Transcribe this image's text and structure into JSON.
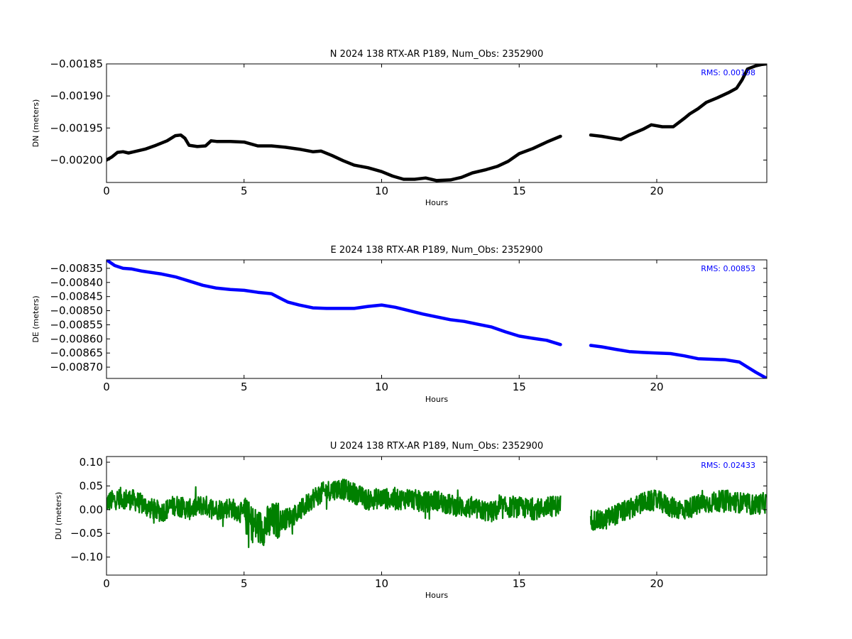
{
  "chart_data": [
    {
      "type": "line",
      "title": "N 2024 138 RTX-AR  P189, Num_Obs: 2352900",
      "xlabel": "Hours",
      "ylabel": "DN (meters)",
      "xlim": [
        0,
        24
      ],
      "ylim": [
        -0.002035,
        -0.00185
      ],
      "xticks": [
        0,
        5,
        10,
        15,
        20
      ],
      "yticks": [
        -0.00185,
        -0.0019,
        -0.00195,
        -0.002
      ],
      "ytick_labels": [
        "−0.00185",
        "−0.00190",
        "−0.00195",
        "−0.00200"
      ],
      "annotation": "RMS:  0.00198",
      "color": "#000000",
      "noise": 0,
      "series": [
        {
          "x": [
            0,
            0.2,
            0.4,
            0.6,
            0.8,
            1.0,
            1.4,
            1.8,
            2.2,
            2.5,
            2.7,
            2.85,
            3.0,
            3.3,
            3.6,
            3.8,
            4.0,
            4.5,
            5.0,
            5.5,
            6.0,
            6.5,
            7.0,
            7.5,
            7.8,
            8.2,
            8.6,
            9.0,
            9.5,
            10.0,
            10.4,
            10.8,
            11.2,
            11.6,
            12.0,
            12.5,
            12.9,
            13.3,
            13.8,
            14.2,
            14.6,
            15.0,
            15.5,
            16.0,
            16.5,
            null,
            17.6,
            18.0,
            18.4,
            18.7,
            19.0,
            19.5,
            19.8,
            20.2,
            20.6,
            21.0,
            21.2,
            21.5,
            21.8,
            22.2,
            22.6,
            22.9,
            23.1,
            23.3,
            23.6,
            23.8,
            24.0
          ],
          "y": [
            -0.002,
            -0.001995,
            -0.001988,
            -0.001987,
            -0.001989,
            -0.001987,
            -0.001983,
            -0.001977,
            -0.00197,
            -0.001962,
            -0.001961,
            -0.001966,
            -0.001977,
            -0.001979,
            -0.001978,
            -0.00197,
            -0.001971,
            -0.001971,
            -0.001972,
            -0.001978,
            -0.001978,
            -0.00198,
            -0.001983,
            -0.001987,
            -0.001986,
            -0.001993,
            -0.002001,
            -0.002008,
            -0.002012,
            -0.002018,
            -0.002025,
            -0.00203,
            -0.00203,
            -0.002028,
            -0.002032,
            -0.002031,
            -0.002027,
            -0.00202,
            -0.002015,
            -0.00201,
            -0.002002,
            -0.00199,
            -0.001982,
            -0.001972,
            -0.001963,
            null,
            -0.001961,
            -0.001963,
            -0.001966,
            -0.001968,
            -0.001961,
            -0.001952,
            -0.001945,
            -0.001948,
            -0.001948,
            -0.001935,
            -0.001928,
            -0.00192,
            -0.00191,
            -0.001903,
            -0.001895,
            -0.001888,
            -0.001875,
            -0.001858,
            -0.001853,
            -0.001851,
            -0.00185
          ]
        }
      ]
    },
    {
      "type": "line",
      "title": "E 2024 138 RTX-AR  P189, Num_Obs: 2352900",
      "xlabel": "Hours",
      "ylabel": "DE (meters)",
      "xlim": [
        0,
        24
      ],
      "ylim": [
        -0.00874,
        -0.00832
      ],
      "xticks": [
        0,
        5,
        10,
        15,
        20
      ],
      "yticks": [
        -0.00835,
        -0.0084,
        -0.00845,
        -0.0085,
        -0.00855,
        -0.0086,
        -0.00865,
        -0.0087
      ],
      "ytick_labels": [
        "−0.00835",
        "−0.00840",
        "−0.00845",
        "−0.00850",
        "−0.00855",
        "−0.00860",
        "−0.00865",
        "−0.00870"
      ],
      "annotation": "RMS:  0.00853",
      "color": "#0000ff",
      "noise": 0,
      "series": [
        {
          "x": [
            0,
            0.3,
            0.6,
            0.9,
            1.3,
            2.0,
            2.5,
            3.0,
            3.5,
            4.0,
            4.5,
            5.0,
            5.5,
            6.0,
            6.4,
            6.6,
            7.0,
            7.5,
            8.0,
            8.5,
            9.0,
            9.5,
            10.0,
            10.5,
            11.0,
            11.5,
            12.0,
            12.5,
            13.0,
            13.5,
            14.0,
            14.5,
            15.0,
            15.5,
            16.0,
            16.5,
            null,
            17.6,
            18.0,
            18.5,
            19.0,
            19.5,
            20.0,
            20.5,
            21.0,
            21.5,
            22.0,
            22.5,
            23.0,
            23.3,
            23.6,
            24.0
          ],
          "y": [
            -0.00832,
            -0.00834,
            -0.00835,
            -0.008352,
            -0.00836,
            -0.00837,
            -0.00838,
            -0.008395,
            -0.00841,
            -0.00842,
            -0.008425,
            -0.008428,
            -0.008435,
            -0.00844,
            -0.00846,
            -0.00847,
            -0.00848,
            -0.00849,
            -0.008492,
            -0.008492,
            -0.008492,
            -0.008485,
            -0.00848,
            -0.008488,
            -0.0085,
            -0.008512,
            -0.008522,
            -0.008532,
            -0.008538,
            -0.008548,
            -0.008558,
            -0.008575,
            -0.00859,
            -0.008598,
            -0.008605,
            -0.00862,
            null,
            -0.008623,
            -0.008628,
            -0.008637,
            -0.008645,
            -0.008648,
            -0.00865,
            -0.008652,
            -0.00866,
            -0.00867,
            -0.008672,
            -0.008674,
            -0.008682,
            -0.0087,
            -0.008718,
            -0.00874
          ]
        }
      ]
    },
    {
      "type": "line",
      "title": "U 2024 138 RTX-AR  P189, Num_Obs: 2352900",
      "xlabel": "Hours",
      "ylabel": "DU (meters)",
      "xlim": [
        0,
        24
      ],
      "ylim": [
        -0.138,
        0.112
      ],
      "xticks": [
        0,
        5,
        10,
        15,
        20
      ],
      "yticks": [
        0.1,
        0.05,
        0,
        -0.05,
        -0.1
      ],
      "ytick_labels": [
        "0.10",
        "0.05",
        "0.00",
        "−0.05",
        "−0.10"
      ],
      "annotation": "RMS:  0.02433",
      "color": "#008000",
      "noise": 0.022,
      "series": [
        {
          "x": [
            0,
            0.5,
            1.0,
            1.5,
            2.0,
            2.5,
            3.0,
            3.5,
            4.0,
            4.5,
            5.0,
            5.3,
            5.6,
            6.0,
            6.5,
            7.0,
            7.5,
            8.0,
            8.5,
            9.0,
            9.5,
            10.0,
            10.5,
            11.0,
            11.5,
            12.0,
            12.5,
            13.0,
            13.5,
            14.0,
            14.5,
            15.0,
            15.5,
            16.0,
            16.5,
            null,
            17.6,
            18.0,
            18.5,
            19.0,
            19.5,
            20.0,
            20.5,
            21.0,
            21.5,
            22.0,
            22.5,
            23.0,
            23.5,
            24.0
          ],
          "y": [
            0.015,
            0.025,
            0.02,
            0.005,
            -0.005,
            0.01,
            0.0,
            0.01,
            0.0,
            0.005,
            -0.01,
            -0.03,
            -0.04,
            -0.025,
            -0.02,
            -0.005,
            0.025,
            0.04,
            0.045,
            0.035,
            0.02,
            0.025,
            0.02,
            0.025,
            0.015,
            0.02,
            0.01,
            0.005,
            0.0,
            -0.005,
            0.005,
            0.005,
            0.0,
            0.005,
            0.01,
            null,
            -0.02,
            -0.025,
            -0.01,
            0.0,
            0.015,
            0.02,
            0.005,
            0.0,
            0.01,
            0.015,
            0.02,
            0.015,
            0.01,
            0.015
          ]
        }
      ]
    }
  ]
}
